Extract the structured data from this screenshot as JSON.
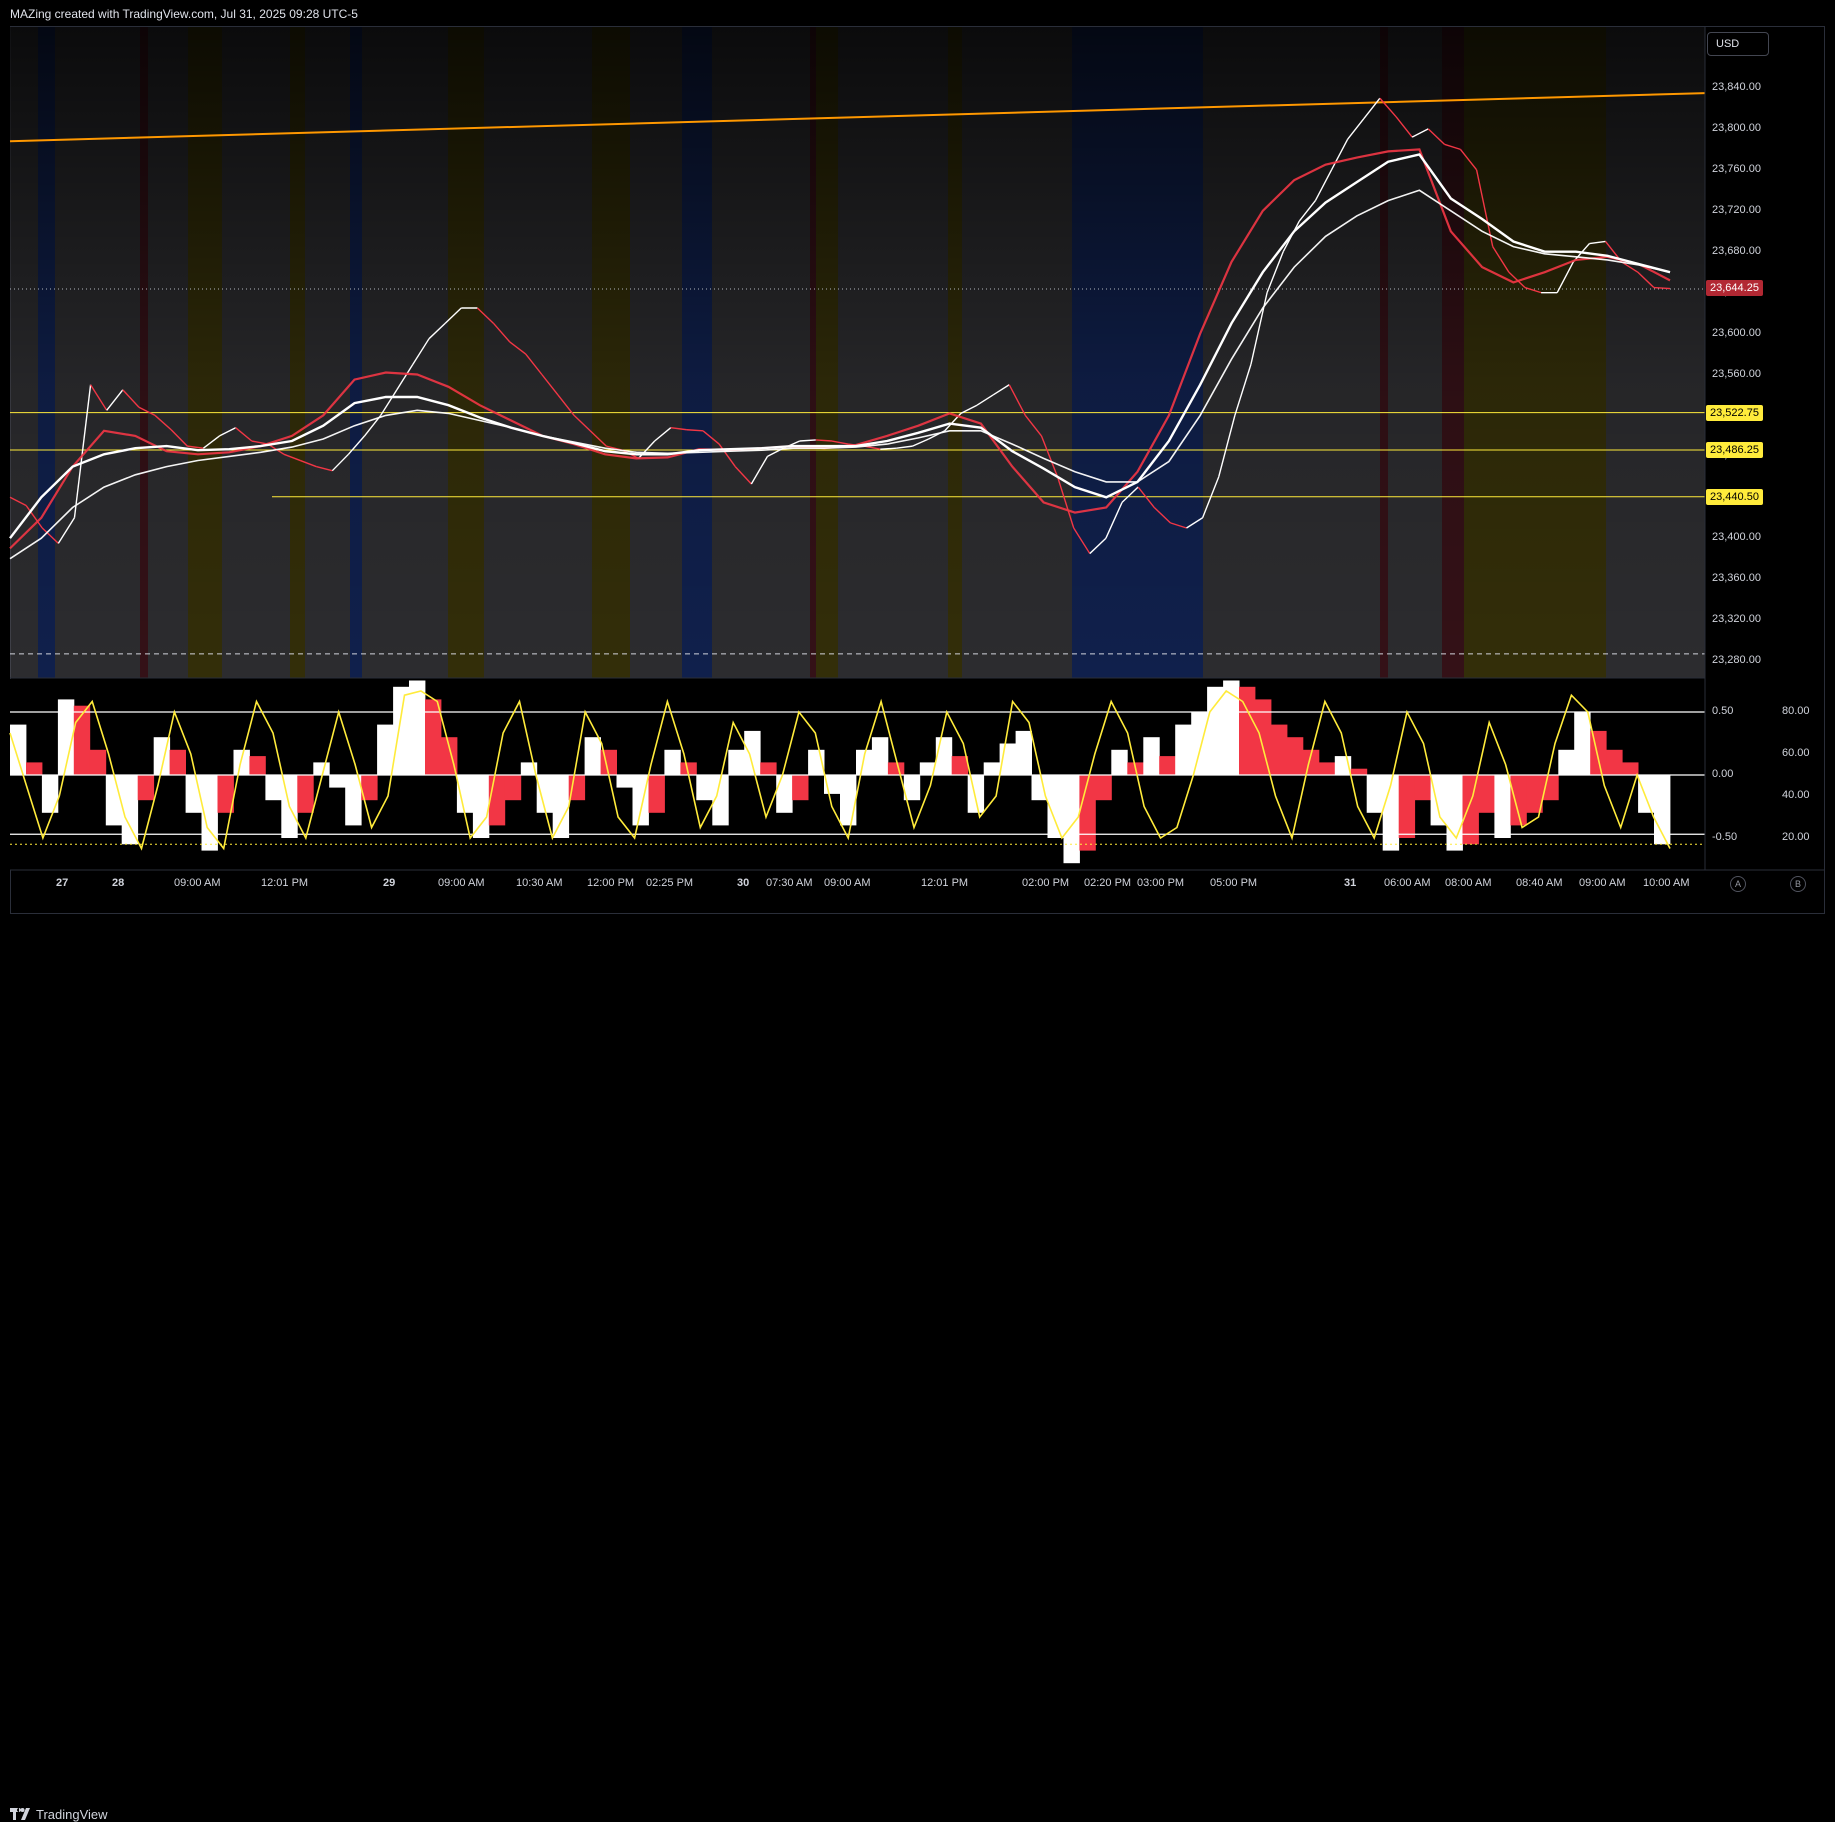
{
  "header": {
    "caption": "MAZing created with TradingView.com, Jul 31, 2025 09:28 UTC-5"
  },
  "toolbar": {
    "currency_label": "USD"
  },
  "footer": {
    "logo_text": "TradingView"
  },
  "scale_buttons": {
    "a_label": "A",
    "b_label": "B"
  },
  "colors": {
    "bull": "#ffffff",
    "bear": "#f23645",
    "trendline": "#ff9800",
    "levels": "#ffeb3b",
    "session_blue": "#1e3a8a",
    "session_yellow": "#5c5410",
    "session_gray": "#505055",
    "session_red": "#5e1f2a"
  },
  "chart_data": [
    {
      "type": "line",
      "y_axis": {
        "ticks": [
          "23,840.00",
          "23,800.00",
          "23,760.00",
          "23,720.00",
          "23,680.00",
          "23,640.00",
          "23,600.00",
          "23,560.00",
          "23,520.00",
          "23,480.00",
          "23,440.00",
          "23,400.00",
          "23,360.00",
          "23,320.00",
          "23,280.00"
        ],
        "ylim": [
          23280,
          23840
        ]
      },
      "x_axis": {
        "ticks": [
          "27",
          "28",
          "09:00 AM",
          "12:01 PM",
          "29",
          "09:00 AM",
          "10:30 AM",
          "12:00 PM",
          "02:25 PM",
          "30",
          "07:30 AM",
          "09:00 AM",
          "12:01 PM",
          "02:00 PM",
          "02:20 PM",
          "03:00 PM",
          "05:00 PM",
          "31",
          "06:00 AM",
          "08:00 AM",
          "08:40 AM",
          "09:00 AM",
          "10:00 AM"
        ]
      },
      "last_price": {
        "label": "23,644.25",
        "value": 23644.25
      },
      "levels": [
        {
          "label": "23,522.75",
          "value": 23522.75
        },
        {
          "label": "23,486.25",
          "value": 23486.25
        },
        {
          "label": "23,440.50",
          "value": 23440.5
        }
      ],
      "trendline": {
        "start_value": 23788,
        "end_value": 23835
      },
      "dashed_level": {
        "value": 23287
      },
      "series": [
        {
          "values": [
            23440,
            23432,
            23410,
            23395,
            23420,
            23550,
            23525,
            23545,
            23528,
            23520,
            23506,
            23490,
            23488,
            23500,
            23508,
            23495,
            23492,
            23482,
            23476,
            23470,
            23466,
            23482,
            23500,
            23520,
            23545,
            23570,
            23595,
            23610,
            23625,
            23625,
            23610,
            23592,
            23580,
            23560,
            23540,
            23520,
            23505,
            23490,
            23486,
            23478,
            23495,
            23508,
            23506,
            23505,
            23492,
            23470,
            23453,
            23480,
            23488,
            23495,
            23496,
            23495,
            23492,
            23490,
            23487,
            23488,
            23490,
            23497,
            23505,
            23522,
            23530,
            23540,
            23550,
            23520,
            23500,
            23460,
            23410,
            23385,
            23400,
            23435,
            23450,
            23430,
            23415,
            23410,
            23420,
            23460,
            23520,
            23570,
            23640,
            23680,
            23710,
            23730,
            23760,
            23790,
            23810,
            23830,
            23812,
            23792,
            23800,
            23785,
            23780,
            23760,
            23685,
            23660,
            23645,
            23640,
            23640,
            23670,
            23688,
            23690,
            23670,
            23660,
            23645,
            23644
          ]
        },
        {
          "name": "",
          "values": [
            23390,
            23420,
            23470,
            23505,
            23500,
            23485,
            23482,
            23484,
            23490,
            23500,
            23520,
            23555,
            23562,
            23560,
            23548,
            23530,
            23515,
            23500,
            23492,
            23482,
            23478,
            23479,
            23487,
            23486,
            23488,
            23490,
            23488,
            23491,
            23500,
            23510,
            23522,
            23512,
            23470,
            23435,
            23425,
            23430,
            23465,
            23520,
            23600,
            23670,
            23720,
            23750,
            23765,
            23772,
            23778,
            23780,
            23700,
            23665,
            23650,
            23660,
            23672,
            23675,
            23668,
            23652
          ]
        },
        {
          "name": "",
          "values": [
            23400,
            23440,
            23470,
            23482,
            23488,
            23490,
            23486,
            23487,
            23490,
            23495,
            23510,
            23532,
            23538,
            23538,
            23530,
            23518,
            23508,
            23500,
            23493,
            23485,
            23482,
            23482,
            23486,
            23487,
            23488,
            23490,
            23490,
            23490,
            23495,
            23503,
            23512,
            23508,
            23485,
            23468,
            23450,
            23440,
            23455,
            23495,
            23550,
            23610,
            23660,
            23700,
            23728,
            23748,
            23768,
            23775,
            23732,
            23712,
            23690,
            23680,
            23680,
            23676,
            23668,
            23660
          ]
        },
        {
          "name": "",
          "values": [
            23380,
            23400,
            23430,
            23450,
            23462,
            23470,
            23476,
            23480,
            23484,
            23489,
            23497,
            23510,
            23520,
            23525,
            23522,
            23515,
            23508,
            23500,
            23494,
            23488,
            23484,
            23483,
            23484,
            23485,
            23486,
            23488,
            23488,
            23489,
            23492,
            23498,
            23505,
            23505,
            23492,
            23478,
            23465,
            23455,
            23455,
            23475,
            23520,
            23575,
            23625,
            23665,
            23695,
            23715,
            23730,
            23740,
            23720,
            23700,
            23685,
            23678,
            23675,
            23672,
            23667,
            23660
          ]
        }
      ]
    },
    {
      "type": "area",
      "left_ticks": [
        "0.50",
        "0.00",
        "-0.50"
      ],
      "right_ticks": [
        "80.00",
        "60.00",
        "40.00",
        "20.00"
      ],
      "ylim": [
        -0.75,
        0.75
      ],
      "levels": [
        0.5,
        0.0,
        -0.47,
        -0.55
      ],
      "histogram_values": [
        0.4,
        0.1,
        -0.3,
        0.6,
        0.55,
        0.2,
        -0.4,
        -0.55,
        -0.2,
        0.3,
        0.2,
        -0.3,
        -0.6,
        -0.3,
        0.2,
        0.15,
        -0.2,
        -0.5,
        -0.3,
        0.1,
        -0.1,
        -0.4,
        -0.2,
        0.4,
        0.7,
        0.75,
        0.6,
        0.3,
        -0.3,
        -0.5,
        -0.4,
        -0.2,
        0.1,
        -0.3,
        -0.5,
        -0.2,
        0.3,
        0.2,
        -0.1,
        -0.4,
        -0.3,
        0.2,
        0.1,
        -0.2,
        -0.4,
        0.2,
        0.35,
        0.1,
        -0.3,
        -0.2,
        0.2,
        -0.15,
        -0.4,
        0.2,
        0.3,
        0.1,
        -0.2,
        0.1,
        0.3,
        0.15,
        -0.3,
        0.1,
        0.25,
        0.35,
        -0.2,
        -0.5,
        -0.7,
        -0.6,
        -0.2,
        0.2,
        0.1,
        0.3,
        0.15,
        0.4,
        0.5,
        0.7,
        0.75,
        0.7,
        0.6,
        0.4,
        0.3,
        0.2,
        0.1,
        0.15,
        0.05,
        -0.3,
        -0.6,
        -0.5,
        -0.2,
        -0.4,
        -0.6,
        -0.55,
        -0.3,
        -0.5,
        -0.4,
        -0.3,
        -0.2,
        0.2,
        0.5,
        0.35,
        0.2,
        0.1,
        -0.3,
        -0.55
      ],
      "oscillator_values": [
        70,
        45,
        20,
        40,
        75,
        85,
        60,
        30,
        15,
        45,
        80,
        60,
        25,
        15,
        55,
        85,
        70,
        35,
        20,
        50,
        80,
        55,
        25,
        40,
        88,
        90,
        85,
        55,
        20,
        30,
        70,
        85,
        50,
        20,
        35,
        80,
        65,
        30,
        20,
        55,
        85,
        60,
        25,
        40,
        75,
        60,
        30,
        50,
        80,
        70,
        35,
        20,
        60,
        85,
        55,
        25,
        45,
        80,
        65,
        30,
        40,
        85,
        75,
        40,
        20,
        30,
        60,
        85,
        70,
        35,
        20,
        25,
        50,
        80,
        90,
        85,
        70,
        40,
        20,
        55,
        85,
        70,
        35,
        20,
        45,
        80,
        65,
        30,
        20,
        40,
        75,
        55,
        25,
        30,
        65,
        88,
        80,
        45,
        25,
        50,
        30,
        15
      ]
    }
  ]
}
